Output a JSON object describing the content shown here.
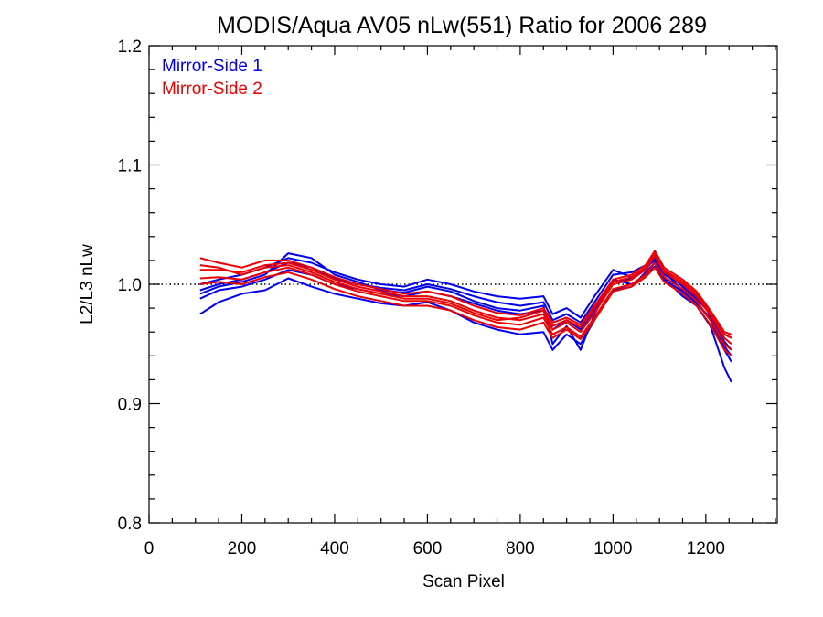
{
  "chart_data": {
    "type": "line",
    "title": "MODIS/Aqua AV05 nLw(551) Ratio for 2006 289",
    "xlabel": "Scan Pixel",
    "ylabel": "L2/L3 nLw",
    "xlim": [
      0,
      1354
    ],
    "ylim": [
      0.8,
      1.2
    ],
    "xticks": [
      0,
      200,
      400,
      600,
      800,
      1000,
      1200
    ],
    "yticks": [
      0.8,
      0.9,
      1.0,
      1.1,
      1.2
    ],
    "xtick_labels": [
      "0",
      "200",
      "400",
      "600",
      "800",
      "1000",
      "1200"
    ],
    "ytick_labels": [
      "0.8",
      "0.9",
      "1.0",
      "1.1",
      "1.2"
    ],
    "reference_line": 1.0,
    "grid": false,
    "legend_position": "top-left",
    "colors": {
      "Mirror-Side 1": "#0000ee",
      "Mirror-Side 2": "#ee0000"
    },
    "x": [
      110,
      150,
      200,
      250,
      300,
      350,
      400,
      450,
      500,
      550,
      600,
      650,
      700,
      750,
      800,
      850,
      870,
      900,
      930,
      960,
      1000,
      1040,
      1070,
      1090,
      1110,
      1150,
      1180,
      1210,
      1240,
      1255
    ],
    "series": [
      {
        "name": "Mirror-Side 1",
        "values": [
          0.975,
          0.985,
          0.992,
          0.995,
          1.005,
          0.998,
          0.992,
          0.988,
          0.984,
          0.982,
          0.985,
          0.978,
          0.968,
          0.962,
          0.958,
          0.96,
          0.945,
          0.958,
          0.95,
          0.97,
          0.995,
          0.998,
          1.01,
          1.018,
          1.005,
          0.99,
          0.982,
          0.965,
          0.93,
          0.918
        ]
      },
      {
        "name": "Mirror-Side 1",
        "values": [
          0.988,
          0.995,
          0.998,
          1.004,
          1.012,
          1.008,
          1.0,
          0.996,
          0.992,
          0.99,
          0.994,
          0.99,
          0.984,
          0.978,
          0.975,
          0.978,
          0.962,
          0.97,
          0.962,
          0.978,
          1.002,
          1.005,
          1.012,
          1.022,
          1.01,
          0.995,
          0.985,
          0.97,
          0.945,
          0.935
        ]
      },
      {
        "name": "Mirror-Side 1",
        "values": [
          0.995,
          1.0,
          1.004,
          1.01,
          1.018,
          1.014,
          1.005,
          1.0,
          0.997,
          0.995,
          1.0,
          0.996,
          0.99,
          0.985,
          0.982,
          0.985,
          0.97,
          0.975,
          0.968,
          0.985,
          1.008,
          1.01,
          1.016,
          1.025,
          1.012,
          0.998,
          0.988,
          0.975,
          0.952,
          0.945
        ]
      },
      {
        "name": "Mirror-Side 1",
        "values": [
          1.0,
          1.004,
          1.008,
          1.014,
          1.022,
          1.018,
          1.01,
          1.004,
          1.0,
          0.998,
          1.004,
          1.0,
          0.994,
          0.99,
          0.988,
          0.99,
          0.975,
          0.98,
          0.972,
          0.99,
          1.012,
          1.006,
          1.014,
          1.02,
          1.008,
          1.0,
          0.99,
          0.978,
          0.958,
          0.955
        ]
      },
      {
        "name": "Mirror-Side 1",
        "values": [
          0.992,
          0.998,
          1.002,
          1.008,
          1.026,
          1.022,
          1.008,
          1.002,
          0.995,
          0.993,
          0.998,
          0.994,
          0.986,
          0.98,
          0.978,
          0.982,
          0.95,
          0.965,
          0.945,
          0.975,
          1.004,
          1.0,
          1.008,
          1.015,
          1.004,
          0.994,
          0.984,
          0.972,
          0.948,
          0.94
        ]
      },
      {
        "name": "Mirror-Side 2",
        "values": [
          1.012,
          1.012,
          1.01,
          1.016,
          1.018,
          1.012,
          1.004,
          0.998,
          0.994,
          0.99,
          0.99,
          0.986,
          0.978,
          0.972,
          0.97,
          0.975,
          0.962,
          0.968,
          0.96,
          0.976,
          1.0,
          1.004,
          1.012,
          1.024,
          1.01,
          1.0,
          0.99,
          0.974,
          0.955,
          0.95
        ]
      },
      {
        "name": "Mirror-Side 2",
        "values": [
          1.022,
          1.018,
          1.014,
          1.02,
          1.02,
          1.014,
          1.006,
          1.0,
          0.996,
          0.992,
          0.994,
          0.99,
          0.982,
          0.976,
          0.974,
          0.98,
          0.968,
          0.972,
          0.966,
          0.982,
          1.004,
          1.008,
          1.016,
          1.028,
          1.014,
          1.004,
          0.994,
          0.978,
          0.96,
          0.958
        ]
      },
      {
        "name": "Mirror-Side 2",
        "values": [
          1.005,
          1.006,
          1.004,
          1.01,
          1.014,
          1.008,
          1.0,
          0.994,
          0.99,
          0.986,
          0.986,
          0.982,
          0.974,
          0.968,
          0.966,
          0.972,
          0.958,
          0.964,
          0.956,
          0.972,
          0.996,
          1.0,
          1.008,
          1.018,
          1.006,
          0.996,
          0.986,
          0.97,
          0.95,
          0.945
        ]
      },
      {
        "name": "Mirror-Side 2",
        "values": [
          1.016,
          1.014,
          1.008,
          1.014,
          1.016,
          1.01,
          1.002,
          0.996,
          0.992,
          0.988,
          0.988,
          0.984,
          0.976,
          0.97,
          0.972,
          0.978,
          0.965,
          0.97,
          0.964,
          0.98,
          1.002,
          1.006,
          1.014,
          1.026,
          1.012,
          1.002,
          0.992,
          0.976,
          0.958,
          0.955
        ]
      },
      {
        "name": "Mirror-Side 2",
        "values": [
          1.0,
          1.002,
          1.0,
          1.006,
          1.01,
          1.004,
          0.996,
          0.99,
          0.986,
          0.982,
          0.982,
          0.978,
          0.97,
          0.964,
          0.962,
          0.968,
          0.955,
          0.962,
          0.954,
          0.97,
          0.994,
          0.998,
          1.006,
          1.014,
          1.002,
          0.992,
          0.982,
          0.966,
          0.945,
          0.94
        ]
      }
    ]
  }
}
